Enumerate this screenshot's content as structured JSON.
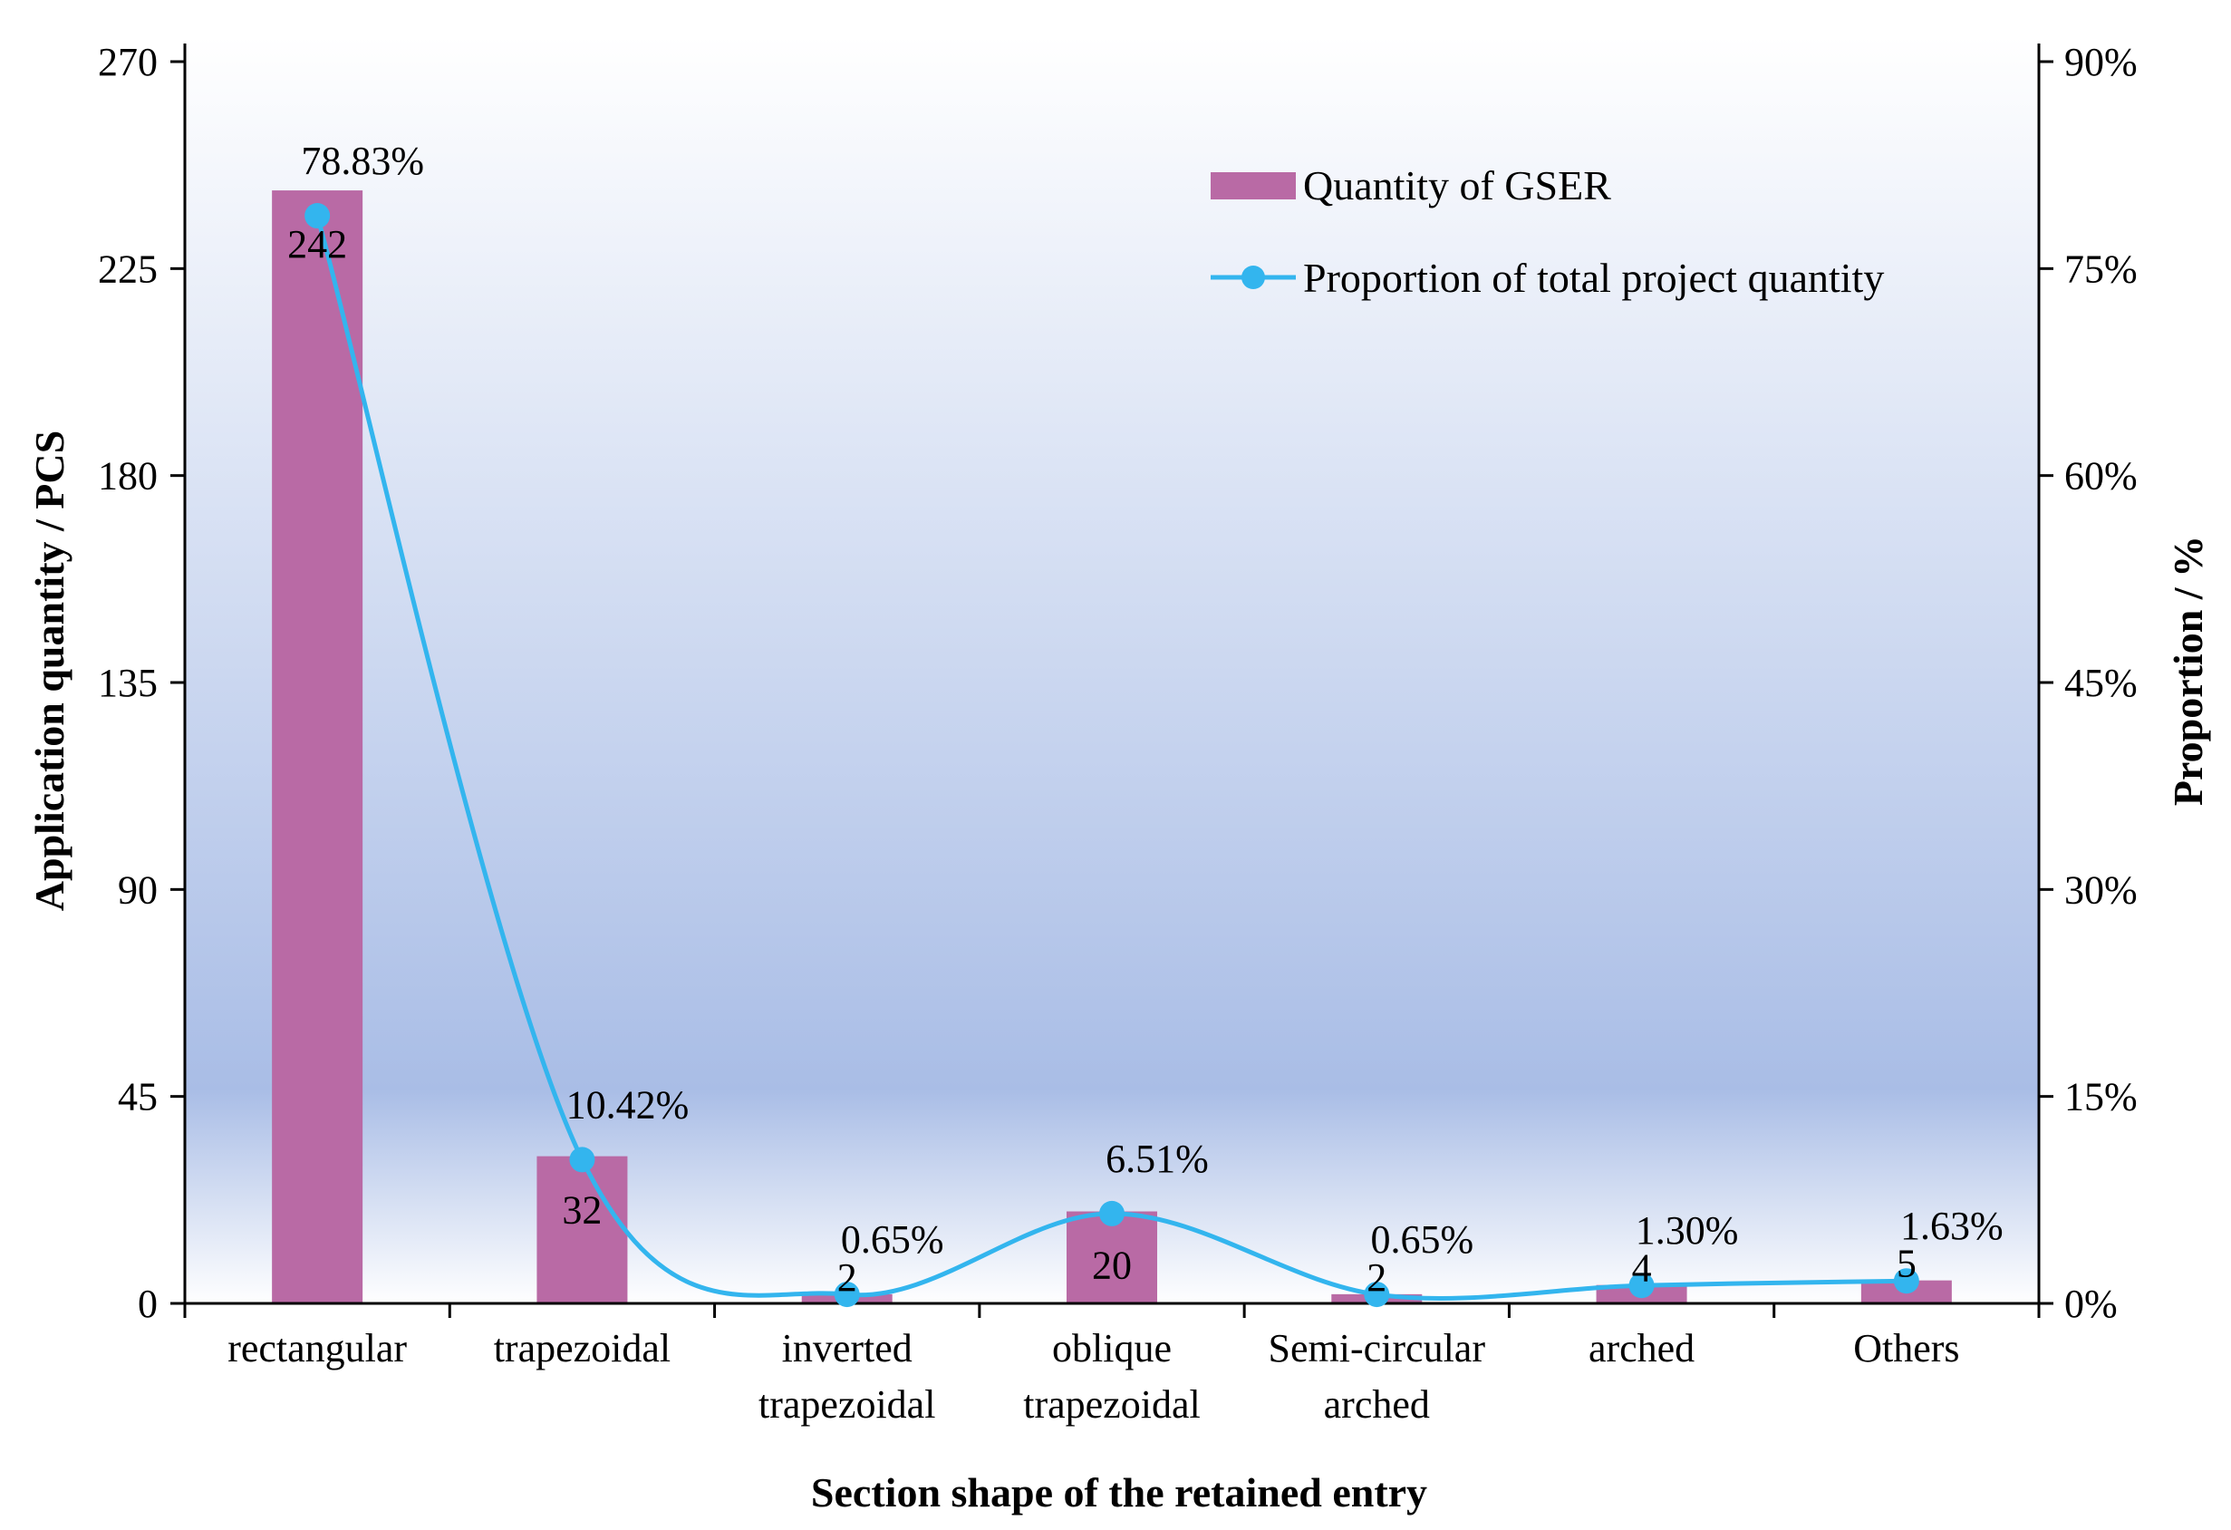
{
  "chart_data": {
    "type": "bar+line",
    "categories": [
      [
        "rectangular"
      ],
      [
        "trapezoidal"
      ],
      [
        "inverted",
        "trapezoidal"
      ],
      [
        "oblique",
        "trapezoidal"
      ],
      [
        "Semi-circular",
        "arched"
      ],
      [
        "arched"
      ],
      [
        "Others"
      ]
    ],
    "series": [
      {
        "name": "Quantity of GSER",
        "type": "bar",
        "axis": "left",
        "color": "#b96aa5",
        "values": [
          242,
          32,
          2,
          20,
          2,
          4,
          5
        ],
        "labels": [
          "242",
          "32",
          "2",
          "20",
          "2",
          "4",
          "5"
        ]
      },
      {
        "name": "Proportion of total project quantity",
        "type": "line",
        "axis": "right",
        "color": "#33b5ee",
        "values": [
          78.83,
          10.42,
          0.65,
          6.51,
          0.65,
          1.3,
          1.63
        ],
        "labels": [
          "78.83%",
          "10.42%",
          "0.65%",
          "6.51%",
          "0.65%",
          "1.30%",
          "1.63%"
        ]
      }
    ],
    "xlabel": "Section shape of the retained entry",
    "ylabel": "Application quantity / PCS",
    "y2label": "Proportion / %",
    "ylim": [
      0,
      270
    ],
    "yticks": [
      "0",
      "45",
      "90",
      "135",
      "180",
      "225",
      "270"
    ],
    "y2lim": [
      0,
      90
    ],
    "y2ticks": [
      "0%",
      "15%",
      "30%",
      "45%",
      "60%",
      "75%",
      "90%"
    ],
    "legend": {
      "position": "top-right"
    },
    "background_gradient": [
      "#ffffff",
      "#a9bde6",
      "#ffffff"
    ]
  }
}
